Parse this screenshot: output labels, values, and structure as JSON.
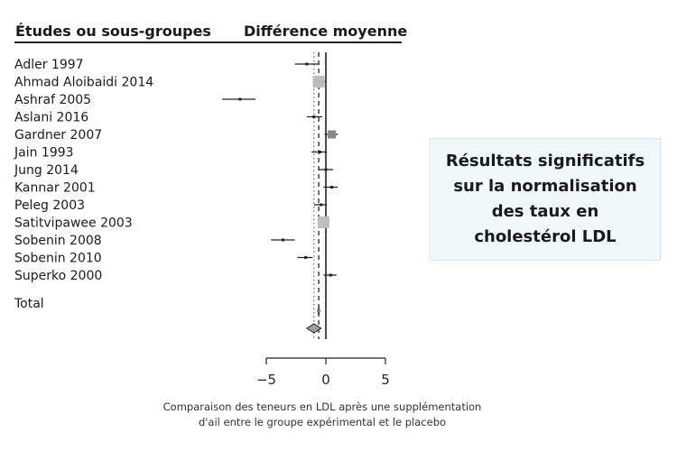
{
  "header": {
    "studies_label": "Études ou sous-groupes",
    "difference_label": "Différence moyenne"
  },
  "callout_text": "Résultats significatifs sur la normalisation des taux en cholestérol LDL",
  "caption": {
    "line1": "Comparaison des teneurs en LDL après une supplémentation",
    "line2": "d'ail entre le groupe expérimental et le placebo"
  },
  "chart_data": {
    "type": "forest",
    "xlim": [
      -5,
      5
    ],
    "xticks": [
      "−5",
      "0",
      "5"
    ],
    "reference_line": 0,
    "dashed_line": -0.6,
    "dotted_line": -1.0,
    "studies": [
      {
        "name": "Adler 1997",
        "estimate": -1.6,
        "ci_low": -2.6,
        "ci_high": -0.6,
        "weight": "small"
      },
      {
        "name": "Ahmad Aloibaidi 2014",
        "estimate": -0.6,
        "ci_low": -1.1,
        "ci_high": 0.0,
        "weight": "large"
      },
      {
        "name": "Ashraf 2005",
        "estimate": -7.2,
        "ci_low": -8.7,
        "ci_high": -5.9,
        "weight": "small"
      },
      {
        "name": "Aslani 2016",
        "estimate": -1.0,
        "ci_low": -1.6,
        "ci_high": -0.3,
        "weight": "small"
      },
      {
        "name": "Gardner 2007",
        "estimate": 0.5,
        "ci_low": -0.1,
        "ci_high": 1.0,
        "weight": "medium"
      },
      {
        "name": "Jain 1993",
        "estimate": -0.5,
        "ci_low": -1.2,
        "ci_high": 0.1,
        "weight": "small"
      },
      {
        "name": "Jung 2014",
        "estimate": 0.0,
        "ci_low": -0.6,
        "ci_high": 0.6,
        "weight": "small"
      },
      {
        "name": "Kannar 2001",
        "estimate": 0.5,
        "ci_low": -0.2,
        "ci_high": 1.0,
        "weight": "small"
      },
      {
        "name": "Peleg 2003",
        "estimate": -0.4,
        "ci_low": -1.0,
        "ci_high": 0.1,
        "weight": "small"
      },
      {
        "name": "Satitvipawee 2003",
        "estimate": -0.2,
        "ci_low": -0.6,
        "ci_high": 0.2,
        "weight": "large"
      },
      {
        "name": "Sobenin 2008",
        "estimate": -3.6,
        "ci_low": -4.6,
        "ci_high": -2.6,
        "weight": "small"
      },
      {
        "name": "Sobenin 2010",
        "estimate": -1.7,
        "ci_low": -2.4,
        "ci_high": -1.1,
        "weight": "small"
      },
      {
        "name": "Superko 2000",
        "estimate": 0.4,
        "ci_low": -0.2,
        "ci_high": 0.9,
        "weight": "small"
      }
    ],
    "subgroup_diamond": {
      "estimate": -0.6,
      "ci_low": -0.7,
      "ci_high": -0.5
    },
    "total": {
      "name": "Total",
      "estimate": -1.0,
      "ci_low": -1.6,
      "ci_high": -0.4
    },
    "colors": {
      "line": "#222222",
      "box_large": "#bdbdbd",
      "box_medium": "#8a8a8a",
      "diamond": "#9e9e9e"
    }
  }
}
